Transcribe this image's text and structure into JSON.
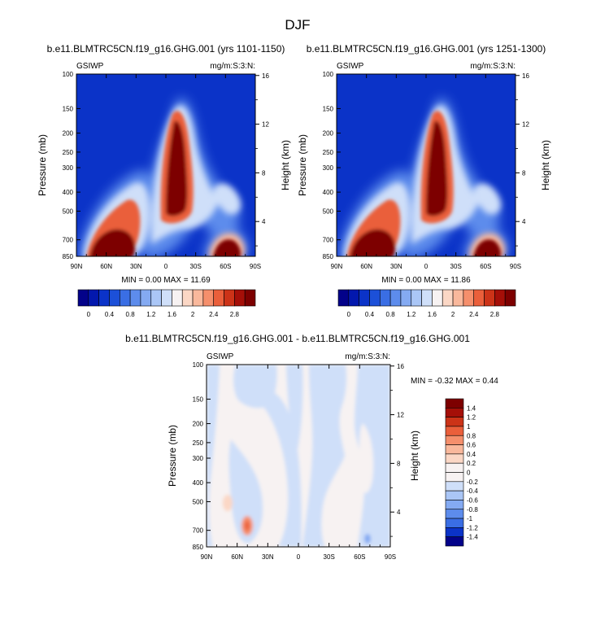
{
  "main_title": "DJF",
  "chart_data": [
    {
      "type": "heatmap",
      "title": "b.e11.BLMTRC5CN.f19_g16.GHG.001 (yrs 1101-1150)",
      "left_string": "GSIWP",
      "right_string": "mg/m:S:3:N:",
      "xlabel": "",
      "ylabel": "Pressure (mb)",
      "y2label": "Height (km)",
      "x_ticks": [
        "90N",
        "60N",
        "30N",
        "0",
        "30S",
        "60S",
        "90S"
      ],
      "y_ticks": [
        100,
        150,
        200,
        250,
        300,
        400,
        500,
        700,
        850
      ],
      "y2_ticks": [
        4,
        8,
        12,
        16
      ],
      "stats": "MIN =  0.00  MAX = 11.69",
      "colorbar_labels": [
        "0",
        "0.4",
        "0.8",
        "1.2",
        "1.6",
        "2",
        "2.4",
        "2.8"
      ],
      "colorbar_colors": [
        "#03028a",
        "#0318ae",
        "#0b33c8",
        "#1c50d8",
        "#3a6ee4",
        "#5d8cec",
        "#84aaf2",
        "#aac6f6",
        "#cfdff9",
        "#f7f2f2",
        "#fbd7c5",
        "#f9b89c",
        "#f58f6c",
        "#ea5f3b",
        "#cc3318",
        "#a50f08",
        "#7d0000"
      ],
      "value_range": [
        0,
        11.69
      ]
    },
    {
      "type": "heatmap",
      "title": "b.e11.BLMTRC5CN.f19_g16.GHG.001 (yrs 1251-1300)",
      "left_string": "GSIWP",
      "right_string": "mg/m:S:3:N:",
      "xlabel": "",
      "ylabel": "Pressure (mb)",
      "y2label": "Height (km)",
      "x_ticks": [
        "90N",
        "60N",
        "30N",
        "0",
        "30S",
        "60S",
        "90S"
      ],
      "y_ticks": [
        100,
        150,
        200,
        250,
        300,
        400,
        500,
        700,
        850
      ],
      "y2_ticks": [
        4,
        8,
        12,
        16
      ],
      "stats": "MIN =  0.00  MAX = 11.86",
      "colorbar_labels": [
        "0",
        "0.4",
        "0.8",
        "1.2",
        "1.6",
        "2",
        "2.4",
        "2.8"
      ],
      "colorbar_colors": [
        "#03028a",
        "#0318ae",
        "#0b33c8",
        "#1c50d8",
        "#3a6ee4",
        "#5d8cec",
        "#84aaf2",
        "#aac6f6",
        "#cfdff9",
        "#f7f2f2",
        "#fbd7c5",
        "#f9b89c",
        "#f58f6c",
        "#ea5f3b",
        "#cc3318",
        "#a50f08",
        "#7d0000"
      ],
      "value_range": [
        0,
        11.86
      ]
    },
    {
      "type": "heatmap",
      "title": "b.e11.BLMTRC5CN.f19_g16.GHG.001 - b.e11.BLMTRC5CN.f19_g16.GHG.001",
      "left_string": "GSIWP",
      "right_string": "mg/m:S:3:N:",
      "xlabel": "",
      "ylabel": "Pressure (mb)",
      "y2label": "Height (km)",
      "x_ticks": [
        "90N",
        "60N",
        "30N",
        "0",
        "30S",
        "60S",
        "90S"
      ],
      "y_ticks": [
        100,
        150,
        200,
        250,
        300,
        400,
        500,
        700,
        850
      ],
      "y2_ticks": [
        4,
        8,
        12,
        16
      ],
      "stats": "MIN =  -0.32  MAX =  0.44",
      "colorbar_labels": [
        "1.4",
        "1.2",
        "1",
        "0.8",
        "0.6",
        "0.4",
        "0.2",
        "0",
        "-0.2",
        "-0.4",
        "-0.6",
        "-0.8",
        "-1",
        "-1.2",
        "-1.4"
      ],
      "colorbar_colors": [
        "#7d0000",
        "#a50f08",
        "#cc3318",
        "#ea5f3b",
        "#f58f6c",
        "#f9b89c",
        "#fbd7c5",
        "#f7f2f2",
        "#f7f2f2",
        "#cfdff9",
        "#aac6f6",
        "#84aaf2",
        "#5d8cec",
        "#3a6ee4",
        "#0b33c8",
        "#03028a"
      ],
      "value_range": [
        -0.32,
        0.44
      ]
    }
  ]
}
